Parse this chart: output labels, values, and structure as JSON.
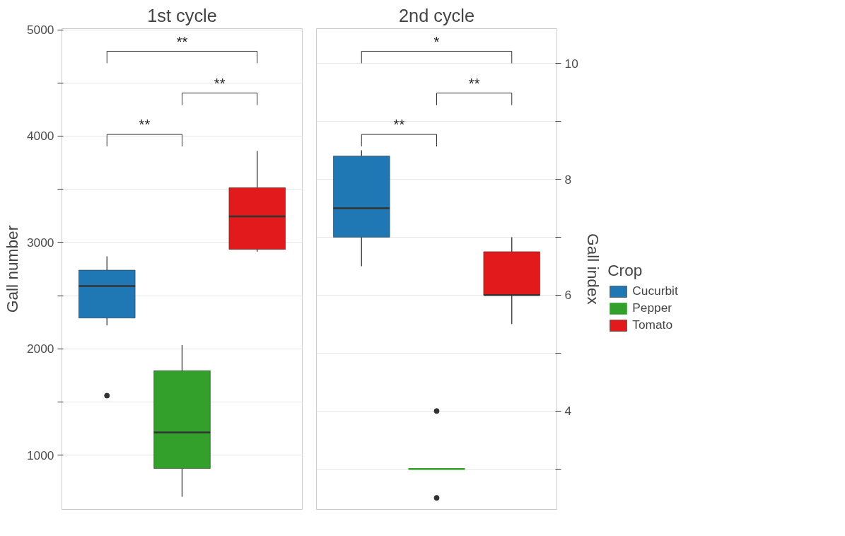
{
  "chart_data": [
    {
      "type": "box",
      "title": "1st cycle",
      "ylabel": "Gall number",
      "categories": [
        null,
        null,
        null
      ],
      "ylim": [
        490,
        5010
      ],
      "yticks": [
        {
          "value": 1000,
          "label": "1000"
        },
        {
          "value": 1500,
          "label": null
        },
        {
          "value": 2000,
          "label": "2000"
        },
        {
          "value": 2500,
          "label": null
        },
        {
          "value": 3000,
          "label": "3000"
        },
        {
          "value": 3500,
          "label": null
        },
        {
          "value": 4000,
          "label": "4000"
        },
        {
          "value": 4500,
          "label": null
        },
        {
          "value": 5000,
          "label": "5000"
        }
      ],
      "grid": "y",
      "tick_labels": "y",
      "series": [
        {
          "color": "#1f78b4",
          "boxes": [
            {
              "low": 2220,
              "q1": 2290,
              "median": 2590,
              "q3": 2740,
              "high": 2870,
              "outliers": [
                1560
              ]
            },
            null,
            null
          ]
        },
        {
          "color": "#33a02c",
          "boxes": [
            null,
            {
              "low": 610,
              "q1": 875,
              "median": 1215,
              "q3": 1795,
              "high": 2035
            },
            null
          ]
        },
        {
          "color": "#e31a1c",
          "boxes": [
            null,
            null,
            {
              "low": 2915,
              "q1": 2935,
              "median": 3245,
              "q3": 3515,
              "high": 3860
            }
          ]
        }
      ],
      "annotations": [
        "**",
        "**",
        "**"
      ]
    },
    {
      "type": "box",
      "title": "2nd cycle",
      "y2label": "Gall index",
      "categories": [
        null,
        null,
        null
      ],
      "y2lim": [
        2.3,
        10.6
      ],
      "y2ticks": [
        {
          "value": 3,
          "label": null
        },
        4,
        {
          "value": 5,
          "label": null
        },
        6,
        {
          "value": 7,
          "label": null
        },
        8,
        {
          "value": 9,
          "label": null
        },
        10
      ],
      "grid": "y",
      "legend": "right",
      "legend_title": "Crop",
      "series": [
        {
          "name": "Cucurbit",
          "color": "#1f78b4",
          "axis": "y2",
          "boxes": [
            {
              "low": 6.5,
              "q1": 7.0,
              "median": 7.5,
              "q3": 8.4,
              "high": 8.5
            },
            null,
            null
          ]
        },
        {
          "name": "Pepper",
          "color": "#33a02c",
          "axis": "y2",
          "boxes": [
            null,
            {
              "low": 3.0,
              "q1": 3.0,
              "median": 3.0,
              "q3": 3.0,
              "high": 3.0,
              "outliers": [
                4,
                2.5
              ]
            },
            null
          ]
        },
        {
          "name": "Tomato",
          "color": "#e31a1c",
          "axis": "y2",
          "boxes": [
            null,
            null,
            {
              "low": 5.5,
              "q1": 6.0,
              "median": 6.0,
              "q3": 6.75,
              "high": 7.0
            }
          ]
        }
      ],
      "annotations": [
        "**",
        "**",
        "*"
      ]
    }
  ]
}
